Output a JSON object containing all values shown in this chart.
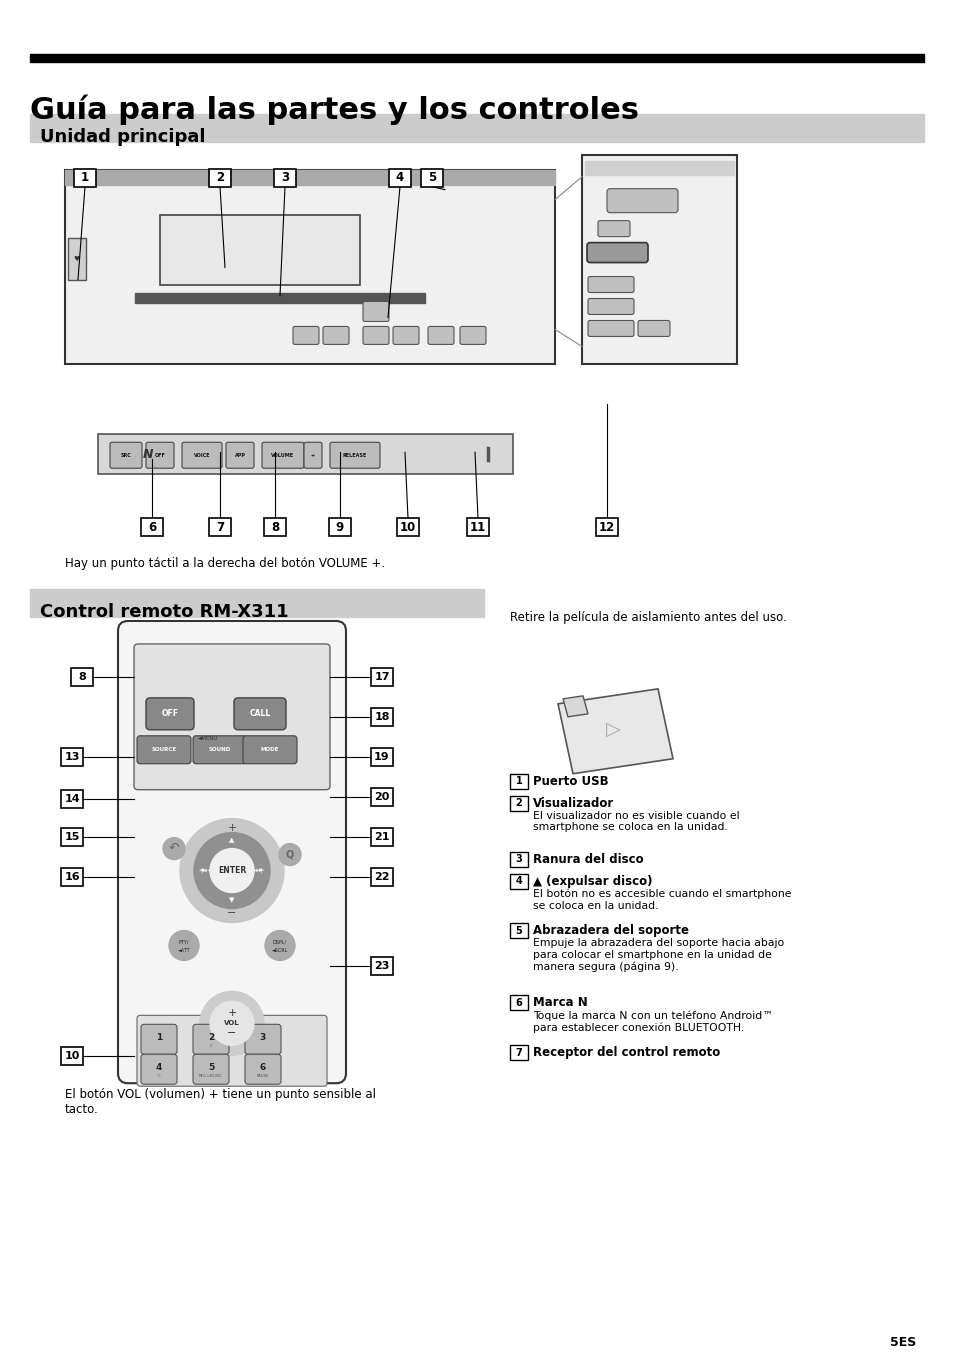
{
  "page_bg": "#ffffff",
  "title_bar_color": "#000000",
  "title_text": "Guía para las partes y los controles",
  "title_fontsize": 22,
  "section_bg": "#cccccc",
  "section1_text": "Unidad principal",
  "section2_text": "Control remoto RM-X311",
  "section_fontsize": 13,
  "note1": "Hay un punto táctil a la derecha del botón VOLUME +.",
  "note2": "Retire la película de aislamiento antes del uso.",
  "note3": "El botón VOL (volumen) + tiene un punto sensible al\ntacto.",
  "page_number": "5ES",
  "descriptions": [
    [
      "1",
      "Puerto USB",
      ""
    ],
    [
      "2",
      "Visualizador",
      "El visualizador no es visible cuando el\nsmartphone se coloca en la unidad."
    ],
    [
      "3",
      "Ranura del disco",
      ""
    ],
    [
      "4",
      "▲ (expulsar disco)",
      "El botón no es accesible cuando el smartphone\nse coloca en la unidad."
    ],
    [
      "5",
      "Abrazadera del soporte",
      "Empuje la abrazadera del soporte hacia abajo\npara colocar el smartphone en la unidad de\nmanera segura (página 9)."
    ],
    [
      "6",
      "Marca N",
      "Toque la marca N con un teléfono Android™\npara establecer conexión BLUETOOTH."
    ],
    [
      "7",
      "Receptor del control remoto",
      ""
    ]
  ],
  "text_color": "#000000"
}
